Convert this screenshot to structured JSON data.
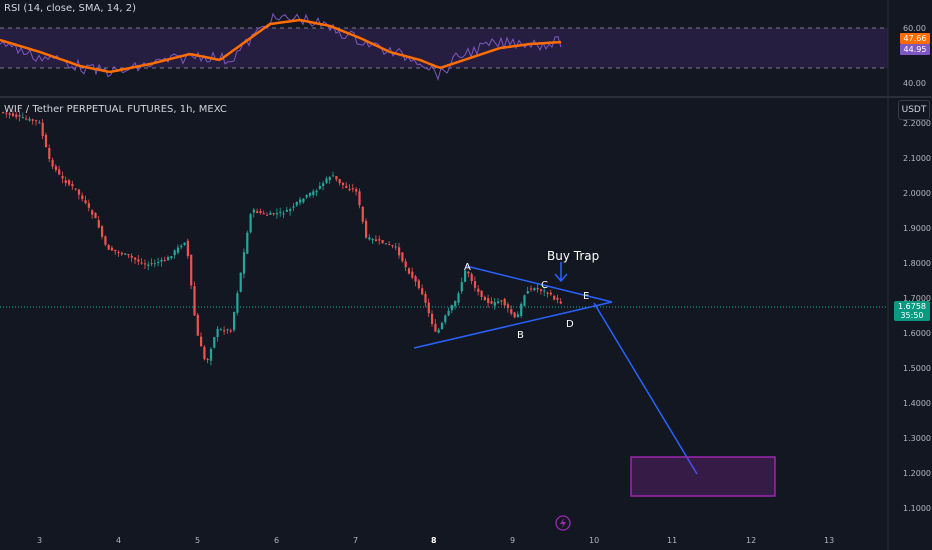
{
  "rsi": {
    "title": "RSI (14, close, SMA, 14, 2)",
    "levels": [
      "60.00",
      "40.00"
    ],
    "badge_upper": "47.66",
    "badge_lower": "44.95",
    "colors": {
      "rsi_line": "#7e57c2",
      "sma_line": "#ff6d00",
      "band_fill": "#2a2148"
    }
  },
  "main": {
    "title": "WIF / Tether PERPETUAL FUTURES, 1h, MEXC",
    "currency_button": "USDT",
    "price_badge": {
      "price": "1.6758",
      "countdown": "35:50"
    },
    "y_axis_labels": [
      "2.2000",
      "2.1000",
      "2.0000",
      "1.9000",
      "1.8000",
      "1.7000",
      "1.6000",
      "1.5000",
      "1.4000",
      "1.3000",
      "1.2000",
      "1.1000"
    ],
    "x_axis_labels": [
      "3",
      "4",
      "5",
      "6",
      "7",
      "8",
      "9",
      "10",
      "11",
      "12",
      "13"
    ],
    "annotations": {
      "buy_trap": "Buy Trap",
      "points": [
        "A",
        "B",
        "C",
        "D",
        "E"
      ]
    },
    "colors": {
      "up": "#26a69a",
      "down": "#ef5350",
      "drawing": "#2962ff",
      "target_box": "#9c27b0"
    }
  },
  "icons": {
    "replay": "lightning-icon"
  }
}
